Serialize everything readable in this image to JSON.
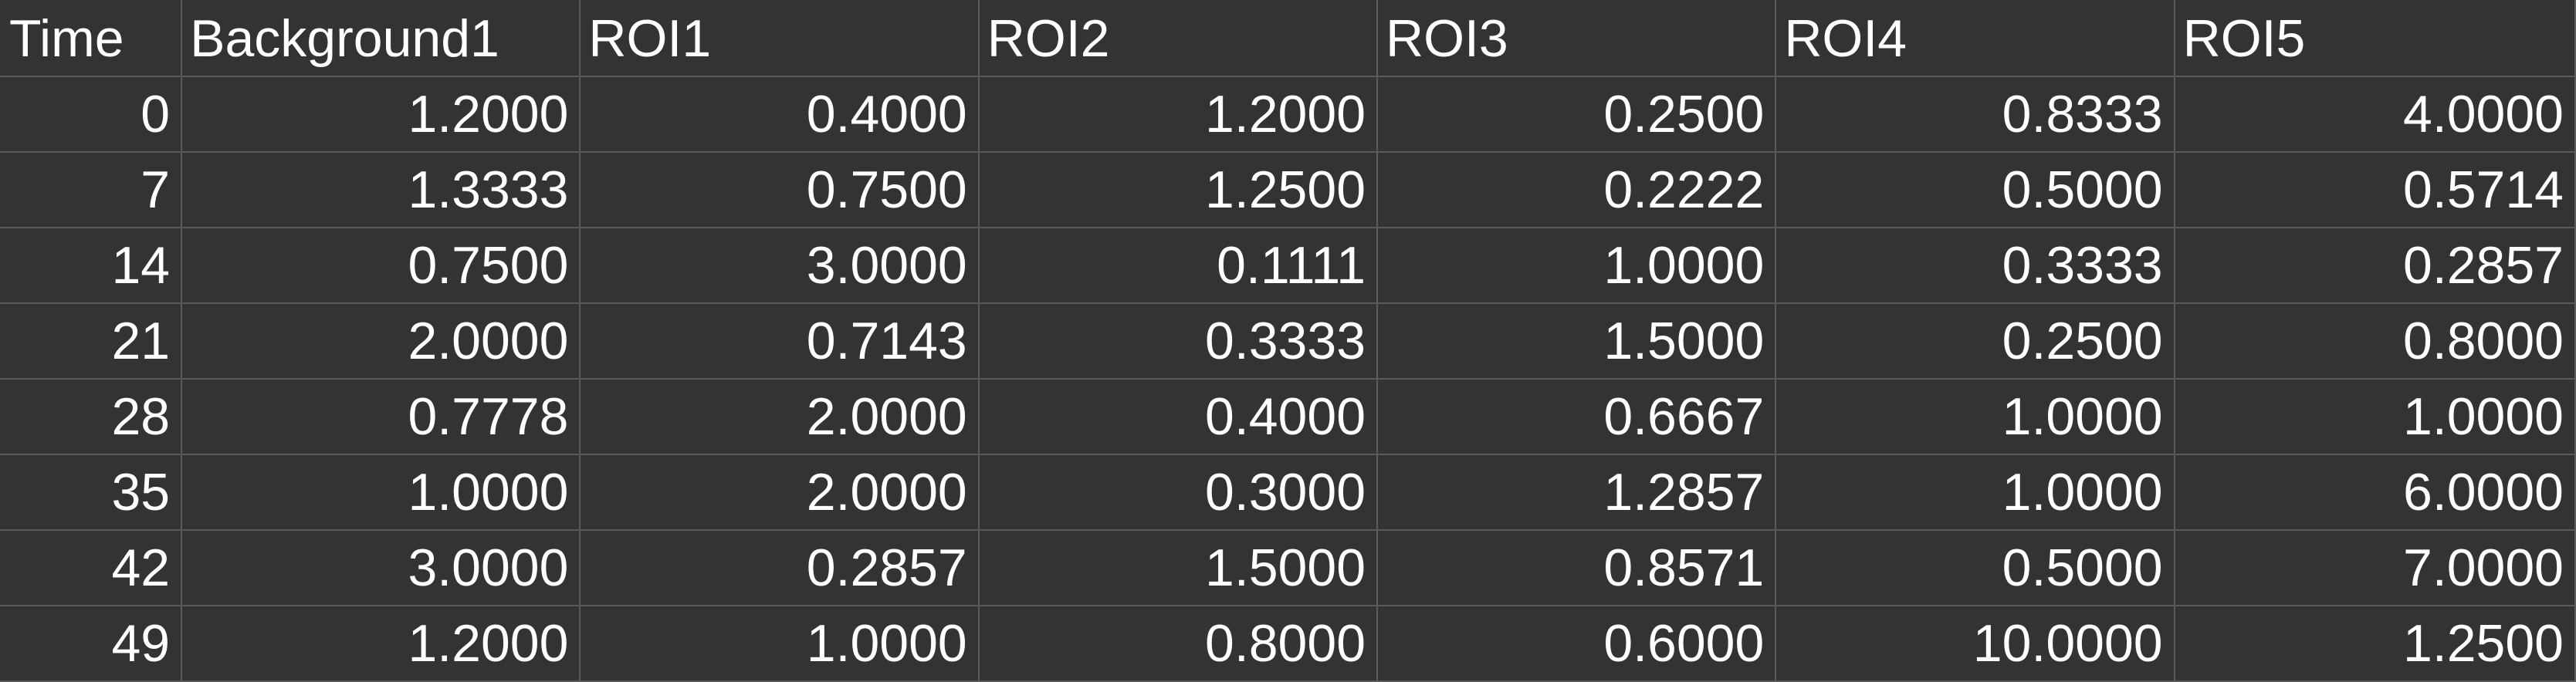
{
  "table": {
    "headers": [
      "Time",
      "Background1",
      "ROI1",
      "ROI2",
      "ROI3",
      "ROI4",
      "ROI5"
    ],
    "rows": [
      [
        "0",
        "1.2000",
        "0.4000",
        "1.2000",
        "0.2500",
        "0.8333",
        "4.0000"
      ],
      [
        "7",
        "1.3333",
        "0.7500",
        "1.2500",
        "0.2222",
        "0.5000",
        "0.5714"
      ],
      [
        "14",
        "0.7500",
        "3.0000",
        "0.1111",
        "1.0000",
        "0.3333",
        "0.2857"
      ],
      [
        "21",
        "2.0000",
        "0.7143",
        "0.3333",
        "1.5000",
        "0.2500",
        "0.8000"
      ],
      [
        "28",
        "0.7778",
        "2.0000",
        "0.4000",
        "0.6667",
        "1.0000",
        "1.0000"
      ],
      [
        "35",
        "1.0000",
        "2.0000",
        "0.3000",
        "1.2857",
        "1.0000",
        "6.0000"
      ],
      [
        "42",
        "3.0000",
        "0.2857",
        "1.5000",
        "0.8571",
        "0.5000",
        "7.0000"
      ],
      [
        "49",
        "1.2000",
        "1.0000",
        "0.8000",
        "0.6000",
        "10.0000",
        "1.2500"
      ]
    ]
  },
  "colors": {
    "cell_background": "#333333",
    "grid_line": "#5a5a5a",
    "text": "#ffffff"
  }
}
